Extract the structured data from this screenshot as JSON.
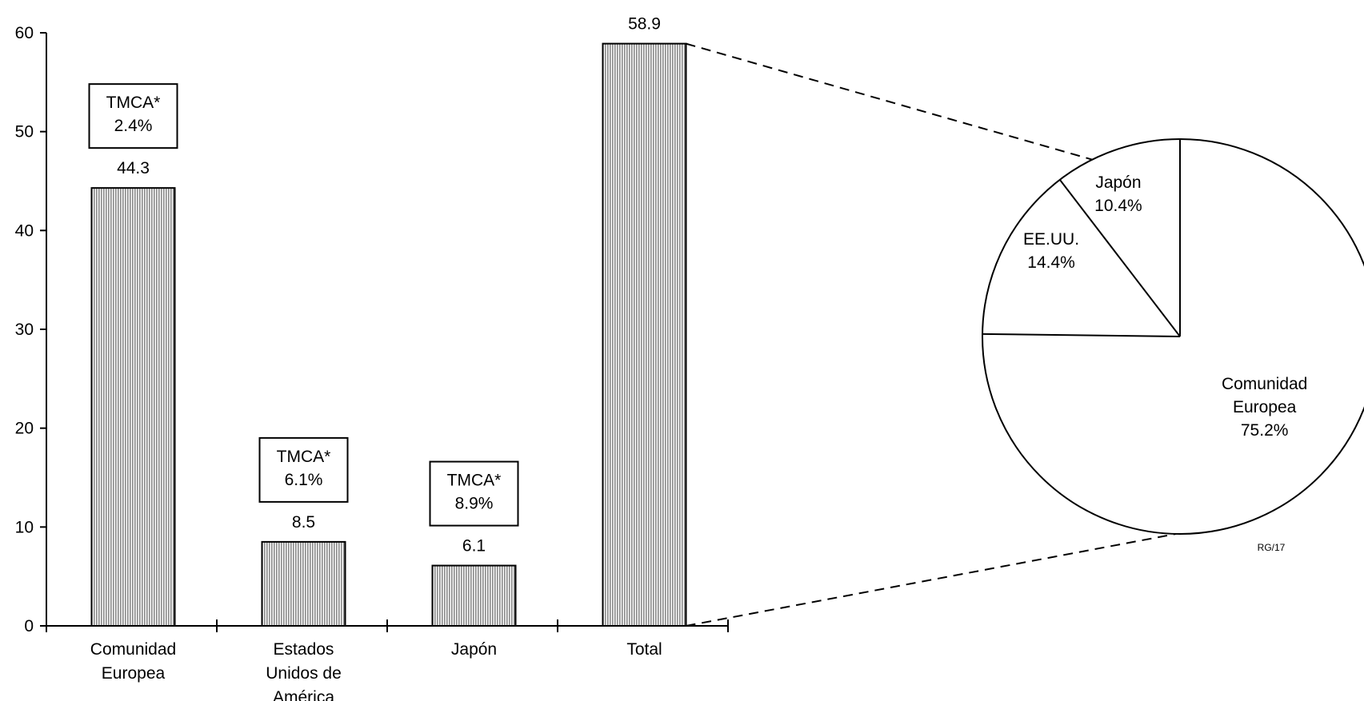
{
  "chart_data": [
    {
      "type": "bar",
      "categories": [
        [
          "Comunidad",
          "Europea"
        ],
        [
          "Estados",
          "Unidos de",
          "América"
        ],
        [
          "Japón"
        ],
        [
          "Total"
        ]
      ],
      "values": [
        44.3,
        8.5,
        6.1,
        58.9
      ],
      "value_labels": [
        "44.3",
        "8.5",
        "6.1",
        "58.9"
      ],
      "annotations": [
        {
          "category_index": 0,
          "label": "TMCA*",
          "value": "2.4%"
        },
        {
          "category_index": 1,
          "label": "TMCA*",
          "value": "6.1%"
        },
        {
          "category_index": 2,
          "label": "TMCA*",
          "value": "8.9%"
        }
      ],
      "ylim": [
        0,
        60
      ],
      "yticks": [
        "0",
        "10",
        "20",
        "30",
        "40",
        "50",
        "60"
      ],
      "grid": false,
      "bar_fill": "#c8c8c8"
    },
    {
      "type": "pie",
      "slices": [
        {
          "lines": [
            "Japón",
            "10.4%"
          ],
          "value": 10.4
        },
        {
          "lines": [
            "EE.UU.",
            "14.4%"
          ],
          "value": 14.4
        },
        {
          "lines": [
            "Comunidad",
            "Europea",
            "75.2%"
          ],
          "value": 75.2
        }
      ],
      "exploded_from": "Total",
      "code": "RG/17"
    }
  ]
}
